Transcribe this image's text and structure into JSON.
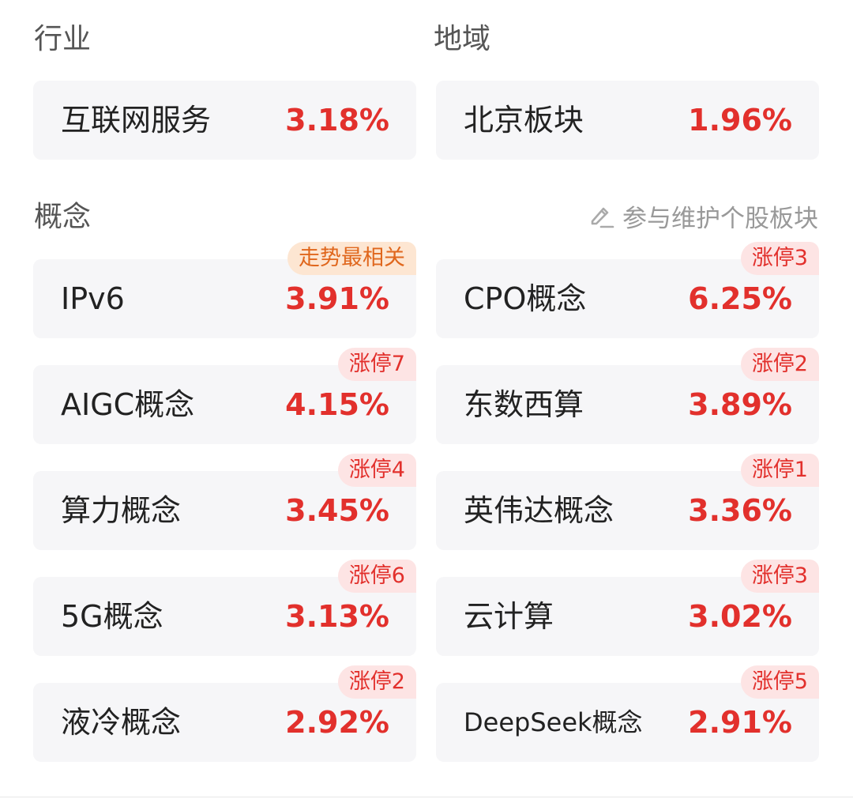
{
  "colors": {
    "up": "#e2302c",
    "badge_text": "#e2302c",
    "badge_bg": "#fde4e4",
    "trend_text": "#e0671d",
    "trend_bg": "#fde6d2",
    "card_bg": "#f6f6f8"
  },
  "industry": {
    "title": "行业",
    "items": [
      {
        "name": "互联网服务",
        "pct": "3.18%"
      }
    ]
  },
  "region": {
    "title": "地域",
    "items": [
      {
        "name": "北京板块",
        "pct": "1.96%"
      }
    ]
  },
  "concept": {
    "title": "概念",
    "edit_icon": "edit-icon",
    "edit_label": "参与维护个股板块",
    "items": [
      {
        "name": "IPv6",
        "pct": "3.91%",
        "badge": "走势最相关",
        "badge_type": "trend"
      },
      {
        "name": "CPO概念",
        "pct": "6.25%",
        "badge": "涨停3",
        "badge_type": "limit"
      },
      {
        "name": "AIGC概念",
        "pct": "4.15%",
        "badge": "涨停7",
        "badge_type": "limit"
      },
      {
        "name": "东数西算",
        "pct": "3.89%",
        "badge": "涨停2",
        "badge_type": "limit"
      },
      {
        "name": "算力概念",
        "pct": "3.45%",
        "badge": "涨停4",
        "badge_type": "limit"
      },
      {
        "name": "英伟达概念",
        "pct": "3.36%",
        "badge": "涨停1",
        "badge_type": "limit"
      },
      {
        "name": "5G概念",
        "pct": "3.13%",
        "badge": "涨停6",
        "badge_type": "limit"
      },
      {
        "name": "云计算",
        "pct": "3.02%",
        "badge": "涨停3",
        "badge_type": "limit"
      },
      {
        "name": "液冷概念",
        "pct": "2.92%",
        "badge": "涨停2",
        "badge_type": "limit"
      },
      {
        "name": "DeepSeek概念",
        "pct": "2.91%",
        "badge": "涨停5",
        "badge_type": "limit"
      }
    ]
  }
}
